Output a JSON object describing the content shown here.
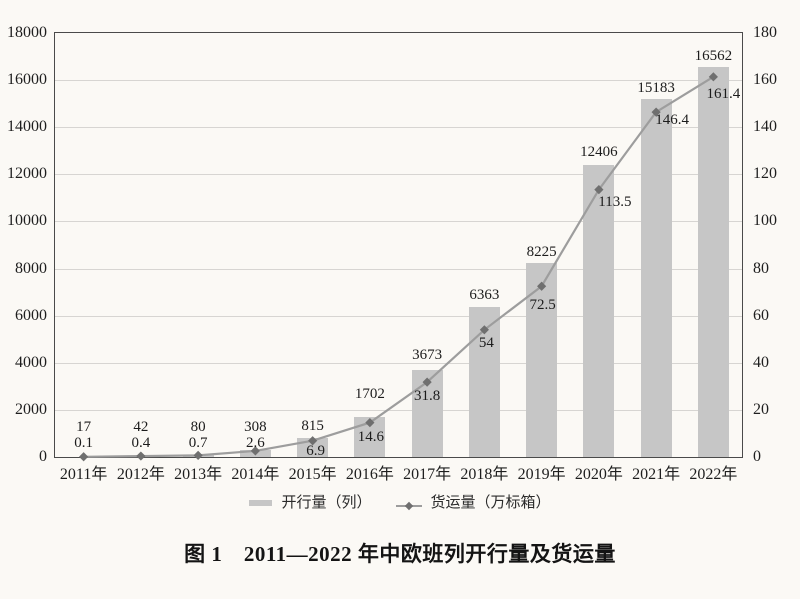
{
  "page": {
    "background": "#fbf9f5",
    "text_color": "#1e1e1e"
  },
  "chart_data": {
    "type": "bar",
    "subtype": "combo bar + line with dual y-axes",
    "title": "图 1　2011—2022 年中欧班列开行量及货运量",
    "categories": [
      "2011年",
      "2012年",
      "2013年",
      "2014年",
      "2015年",
      "2016年",
      "2017年",
      "2018年",
      "2019年",
      "2020年",
      "2021年",
      "2022年"
    ],
    "series": [
      {
        "name": "开行量（列）",
        "type": "bar",
        "axis": "left",
        "color": "#c6c6c6",
        "values": [
          17,
          42,
          80,
          308,
          815,
          1702,
          3673,
          6363,
          8225,
          12406,
          15183,
          16562
        ]
      },
      {
        "name": "货运量（万标箱）",
        "type": "line",
        "axis": "right",
        "color": "#9d9d9d",
        "marker": "diamond",
        "marker_color": "#6f6f6f",
        "values": [
          0.1,
          0.4,
          0.7,
          2.6,
          6.9,
          14.6,
          31.8,
          54,
          72.5,
          113.5,
          146.4,
          161.4
        ]
      }
    ],
    "left_axis": {
      "min": 0,
      "max": 18000,
      "step": 2000,
      "ticks": [
        0,
        2000,
        4000,
        6000,
        8000,
        10000,
        12000,
        14000,
        16000,
        18000
      ]
    },
    "right_axis": {
      "min": 0,
      "max": 180,
      "step": 20,
      "ticks": [
        0,
        20,
        40,
        60,
        80,
        100,
        120,
        140,
        160,
        180
      ]
    },
    "grid": "horizontal gridlines at every axis tick",
    "legend_position": "bottom",
    "data_labels": "both series labeled at every point"
  },
  "legend": {
    "items": [
      {
        "label": "开行量（列）",
        "swatch": "bar"
      },
      {
        "label": "货运量（万标箱）",
        "swatch": "line-diamond"
      }
    ]
  },
  "caption": "图 1　2011—2022 年中欧班列开行量及货运量",
  "colors": {
    "bar": "#c6c6c6",
    "line": "#9d9d9d",
    "marker": "#6f6f6f",
    "grid": "#d7d5d2",
    "axis_border": "#4a4a4a",
    "text": "#1e1e1e",
    "background": "#fbf9f5"
  }
}
